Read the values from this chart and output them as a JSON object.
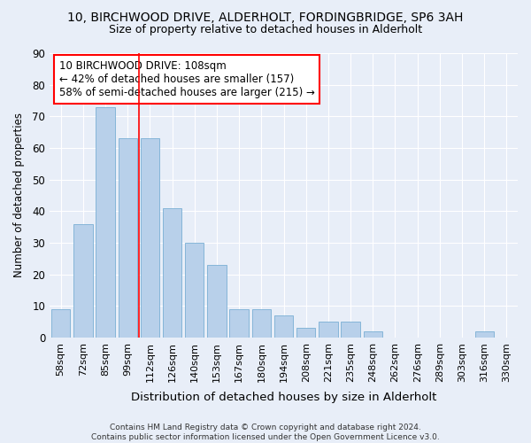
{
  "title1": "10, BIRCHWOOD DRIVE, ALDERHOLT, FORDINGBRIDGE, SP6 3AH",
  "title2": "Size of property relative to detached houses in Alderholt",
  "xlabel": "Distribution of detached houses by size in Alderholt",
  "ylabel": "Number of detached properties",
  "categories": [
    "58sqm",
    "72sqm",
    "85sqm",
    "99sqm",
    "112sqm",
    "126sqm",
    "140sqm",
    "153sqm",
    "167sqm",
    "180sqm",
    "194sqm",
    "208sqm",
    "221sqm",
    "235sqm",
    "248sqm",
    "262sqm",
    "276sqm",
    "289sqm",
    "303sqm",
    "316sqm",
    "330sqm"
  ],
  "values": [
    9,
    36,
    73,
    63,
    63,
    41,
    30,
    23,
    9,
    9,
    7,
    3,
    5,
    5,
    2,
    0,
    0,
    0,
    0,
    2,
    0
  ],
  "bar_color": "#b8d0ea",
  "bar_edge_color": "#7aafd4",
  "vline_x": 3.5,
  "vline_color": "red",
  "annotation_lines": [
    "10 BIRCHWOOD DRIVE: 108sqm",
    "← 42% of detached houses are smaller (157)",
    "58% of semi-detached houses are larger (215) →"
  ],
  "annotation_box_color": "white",
  "annotation_box_edge": "red",
  "ylim": [
    0,
    90
  ],
  "yticks": [
    0,
    10,
    20,
    30,
    40,
    50,
    60,
    70,
    80,
    90
  ],
  "footer": "Contains HM Land Registry data © Crown copyright and database right 2024.\nContains public sector information licensed under the Open Government Licence v3.0.",
  "bg_color": "#e8eef8",
  "grid_color": "white"
}
